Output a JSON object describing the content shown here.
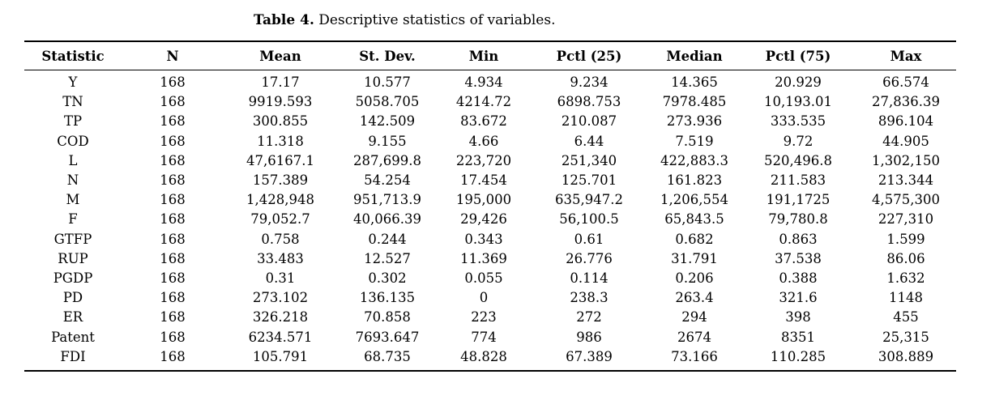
{
  "caption": {
    "label": "Table 4.",
    "text": " Descriptive statistics of variables."
  },
  "colors": {
    "text": "#000000",
    "background": "#ffffff",
    "rule": "#000000"
  },
  "table": {
    "headers": [
      "Statistic",
      "N",
      "Mean",
      "St. Dev.",
      "Min",
      "Pctl (25)",
      "Median",
      "Pctl (75)",
      "Max"
    ],
    "rows": [
      [
        "Y",
        "168",
        "17.17",
        "10.577",
        "4.934",
        "9.234",
        "14.365",
        "20.929",
        "66.574"
      ],
      [
        "TN",
        "168",
        "9919.593",
        "5058.705",
        "4214.72",
        "6898.753",
        "7978.485",
        "10,193.01",
        "27,836.39"
      ],
      [
        "TP",
        "168",
        "300.855",
        "142.509",
        "83.672",
        "210.087",
        "273.936",
        "333.535",
        "896.104"
      ],
      [
        "COD",
        "168",
        "11.318",
        "9.155",
        "4.66",
        "6.44",
        "7.519",
        "9.72",
        "44.905"
      ],
      [
        "L",
        "168",
        "47,6167.1",
        "287,699.8",
        "223,720",
        "251,340",
        "422,883.3",
        "520,496.8",
        "1,302,150"
      ],
      [
        "N",
        "168",
        "157.389",
        "54.254",
        "17.454",
        "125.701",
        "161.823",
        "211.583",
        "213.344"
      ],
      [
        "M",
        "168",
        "1,428,948",
        "951,713.9",
        "195,000",
        "635,947.2",
        "1,206,554",
        "191,1725",
        "4,575,300"
      ],
      [
        "F",
        "168",
        "79,052.7",
        "40,066.39",
        "29,426",
        "56,100.5",
        "65,843.5",
        "79,780.8",
        "227,310"
      ],
      [
        "GTFP",
        "168",
        "0.758",
        "0.244",
        "0.343",
        "0.61",
        "0.682",
        "0.863",
        "1.599"
      ],
      [
        "RUP",
        "168",
        "33.483",
        "12.527",
        "11.369",
        "26.776",
        "31.791",
        "37.538",
        "86.06"
      ],
      [
        "PGDP",
        "168",
        "0.31",
        "0.302",
        "0.055",
        "0.114",
        "0.206",
        "0.388",
        "1.632"
      ],
      [
        "PD",
        "168",
        "273.102",
        "136.135",
        "0",
        "238.3",
        "263.4",
        "321.6",
        "1148"
      ],
      [
        "ER",
        "168",
        "326.218",
        "70.858",
        "223",
        "272",
        "294",
        "398",
        "455"
      ],
      [
        "Patent",
        "168",
        "6234.571",
        "7693.647",
        "774",
        "986",
        "2674",
        "8351",
        "25,315"
      ],
      [
        "FDI",
        "168",
        "105.791",
        "68.735",
        "48.828",
        "67.389",
        "73.166",
        "110.285",
        "308.889"
      ]
    ]
  }
}
